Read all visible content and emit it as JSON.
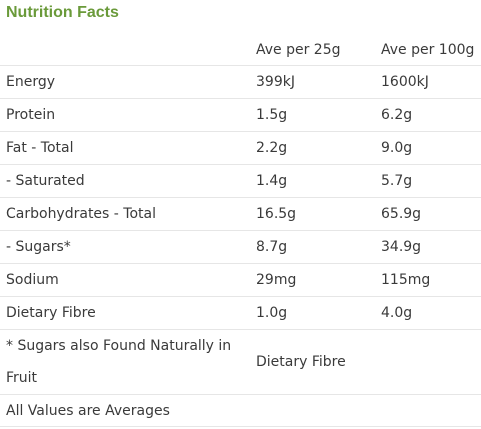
{
  "title": "Nutrition Facts",
  "table": {
    "header": [
      "Ave per 25g",
      "Ave per 100g"
    ],
    "rows": [
      [
        "Energy",
        "399kJ",
        "1600kJ"
      ],
      [
        "Protein",
        "1.5g",
        "6.2g"
      ],
      [
        "Fat - Total",
        "2.2g",
        "9.0g"
      ],
      [
        "- Saturated",
        "1.4g",
        "5.7g"
      ],
      [
        "Carbohydrates - Total",
        "16.5g",
        "65.9g"
      ],
      [
        "- Sugars*",
        "8.7g",
        "34.9g"
      ],
      [
        "Sodium",
        "29mg",
        "115mg"
      ],
      [
        "Dietary Fibre",
        "1.0g",
        "4.0g"
      ]
    ],
    "footnote": [
      "* Sugars also Found Naturally in Fruit",
      "Dietary Fibre"
    ],
    "note": "All Values are Averages"
  }
}
